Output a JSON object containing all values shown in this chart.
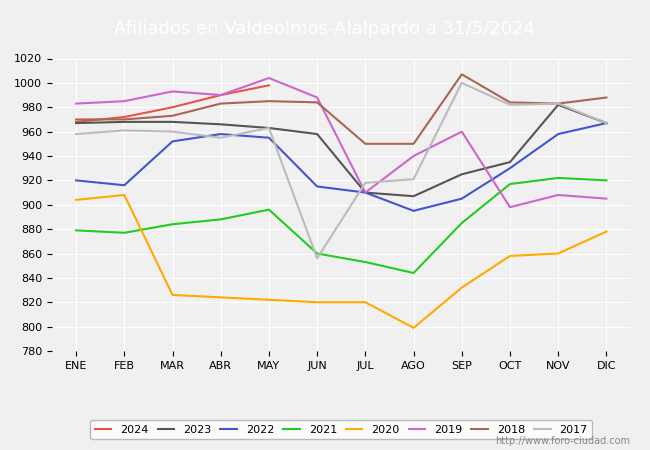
{
  "title": "Afiliados en Valdeolmos-Alalpardo a 31/5/2024",
  "xlabel": "",
  "ylabel": "",
  "months": [
    "ENE",
    "FEB",
    "MAR",
    "ABR",
    "MAY",
    "JUN",
    "JUL",
    "AGO",
    "SEP",
    "OCT",
    "NOV",
    "DIC"
  ],
  "ylim": [
    780,
    1020
  ],
  "yticks": [
    780,
    800,
    820,
    840,
    860,
    880,
    900,
    920,
    940,
    960,
    980,
    1000,
    1020
  ],
  "series": {
    "2024": {
      "color": "#e8534a",
      "data": [
        968,
        972,
        980,
        990,
        998,
        null,
        null,
        null,
        null,
        null,
        null,
        null
      ]
    },
    "2023": {
      "color": "#555555",
      "data": [
        967,
        968,
        968,
        966,
        963,
        958,
        910,
        907,
        925,
        935,
        982,
        967
      ]
    },
    "2022": {
      "color": "#4455cc",
      "data": [
        920,
        916,
        952,
        958,
        955,
        915,
        910,
        895,
        905,
        930,
        958,
        967
      ]
    },
    "2021": {
      "color": "#22cc22",
      "data": [
        879,
        877,
        884,
        888,
        896,
        860,
        853,
        844,
        885,
        917,
        922,
        920
      ]
    },
    "2020": {
      "color": "#ffaa00",
      "data": [
        904,
        908,
        826,
        824,
        822,
        820,
        820,
        799,
        832,
        858,
        860,
        878
      ]
    },
    "2019": {
      "color": "#cc66cc",
      "data": [
        983,
        985,
        993,
        990,
        1004,
        988,
        910,
        940,
        960,
        898,
        908,
        905
      ]
    },
    "2018": {
      "color": "#aa6655",
      "data": [
        970,
        970,
        973,
        983,
        985,
        984,
        950,
        950,
        1007,
        984,
        983,
        988
      ]
    },
    "2017": {
      "color": "#bbbbbb",
      "data": [
        958,
        961,
        960,
        955,
        963,
        856,
        918,
        921,
        1000,
        982,
        983,
        967
      ]
    }
  },
  "background_color": "#f0f0f0",
  "plot_bg_color": "#f0f0f0",
  "title_bg_color": "#5b9bd5",
  "title_text_color": "#ffffff",
  "watermark": "http://www.foro-ciudad.com"
}
